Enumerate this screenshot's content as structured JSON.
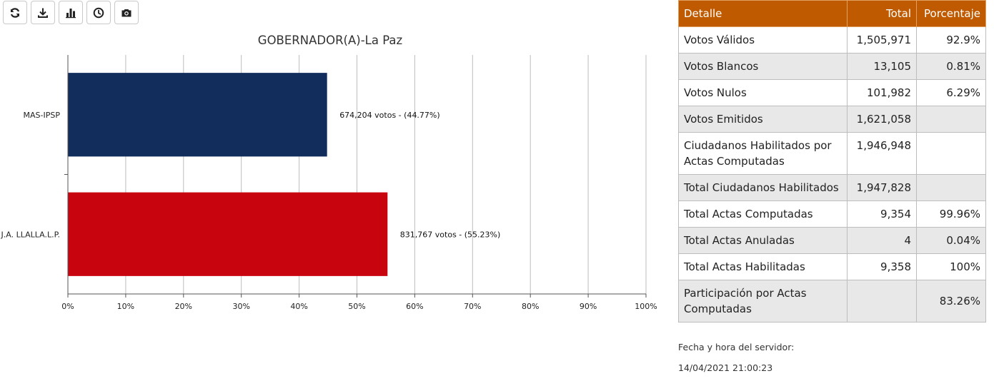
{
  "toolbar": {
    "buttons": [
      {
        "icon": "refresh-icon"
      },
      {
        "icon": "download-icon"
      },
      {
        "icon": "bar-chart-icon"
      },
      {
        "icon": "clock-icon"
      },
      {
        "icon": "camera-icon"
      }
    ]
  },
  "chart_data": {
    "type": "bar",
    "orientation": "horizontal",
    "title": "GOBERNADOR(A)-La Paz",
    "categories": [
      "MAS-IPSP",
      "J.A. LLALLA.L.P."
    ],
    "values": [
      44.77,
      55.23
    ],
    "votes": [
      "674,204",
      "831,767"
    ],
    "data_labels": [
      "674,204 votos - (44.77%)",
      "831,767 votos - (55.23%)"
    ],
    "colors": [
      "#122d5c",
      "#c8050f"
    ],
    "x_ticks": [
      "0%",
      "10%",
      "20%",
      "30%",
      "40%",
      "50%",
      "60%",
      "70%",
      "80%",
      "90%",
      "100%"
    ],
    "xlim": [
      0,
      100
    ],
    "grid": true
  },
  "table": {
    "headers": [
      "Detalle",
      "Total",
      "Porcentaje"
    ],
    "rows": [
      {
        "detalle": "Votos Válidos",
        "total": "1,505,971",
        "porcentaje": "92.9%"
      },
      {
        "detalle": "Votos Blancos",
        "total": "13,105",
        "porcentaje": "0.81%"
      },
      {
        "detalle": "Votos Nulos",
        "total": "101,982",
        "porcentaje": "6.29%"
      },
      {
        "detalle": "Votos Emitidos",
        "total": "1,621,058",
        "porcentaje": ""
      },
      {
        "detalle": "Ciudadanos Habilitados por Actas Computadas",
        "total": "1,946,948",
        "porcentaje": ""
      },
      {
        "detalle": "Total Ciudadanos Habilitados",
        "total": "1,947,828",
        "porcentaje": ""
      },
      {
        "detalle": "Total Actas Computadas",
        "total": "9,354",
        "porcentaje": "99.96%"
      },
      {
        "detalle": "Total Actas Anuladas",
        "total": "4",
        "porcentaje": "0.04%"
      },
      {
        "detalle": "Total Actas Habilitadas",
        "total": "9,358",
        "porcentaje": "100%"
      },
      {
        "detalle": "Participación por Actas Computadas",
        "total": "",
        "porcentaje": "83.26%"
      }
    ]
  },
  "server": {
    "label": "Fecha y hora del servidor:",
    "time": "14/04/2021 21:00:23"
  },
  "colors": {
    "header_bg": "#c05a00",
    "alt_row_bg": "#e8e8e8"
  }
}
